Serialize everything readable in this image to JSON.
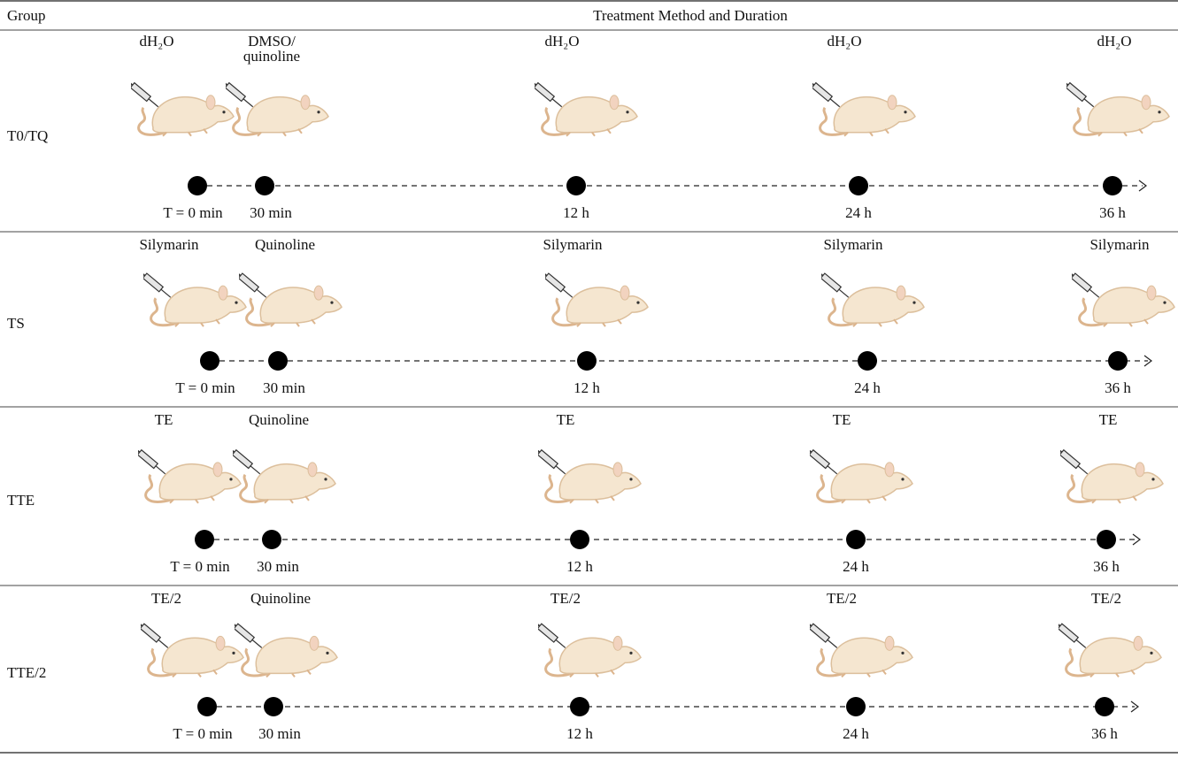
{
  "header": {
    "group": "Group",
    "treatment": "Treatment Method and Duration"
  },
  "rows": [
    {
      "group": "T0/TQ",
      "treatments": [
        "dH₂O",
        "DMSO/\nquinoline",
        "dH₂O",
        "dH₂O",
        "dH₂O"
      ],
      "timepoints": [
        "T = 0 min",
        "30 min",
        "12 h",
        "24 h",
        "36 h"
      ]
    },
    {
      "group": "TS",
      "treatments": [
        "Silymarin",
        "Quinoline",
        "Silymarin",
        "Silymarin",
        "Silymarin"
      ],
      "timepoints": [
        "T = 0 min",
        "30 min",
        "12 h",
        "24 h",
        "36 h"
      ]
    },
    {
      "group": "TTE",
      "treatments": [
        "TE",
        "Quinoline",
        "TE",
        "TE",
        "TE"
      ],
      "timepoints": [
        "T = 0 min",
        "30 min",
        "12 h",
        "24 h",
        "36 h"
      ]
    },
    {
      "group": "TTE/2",
      "treatments": [
        "TE/2",
        "Quinoline",
        "TE/2",
        "TE/2",
        "TE/2"
      ],
      "timepoints": [
        "T = 0 min",
        "30 min",
        "12 h",
        "24 h",
        "36 h"
      ]
    }
  ]
}
